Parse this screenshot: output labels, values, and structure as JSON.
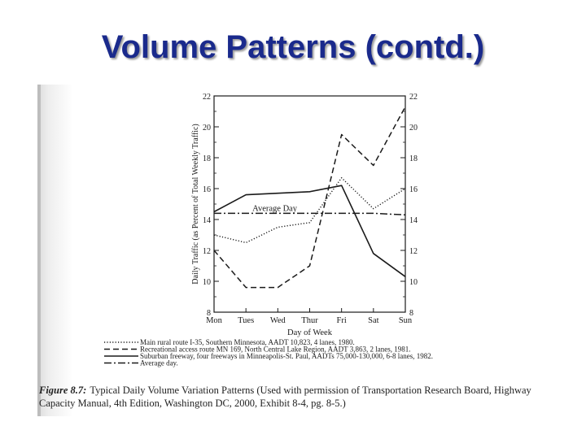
{
  "slide": {
    "title": "Volume Patterns (contd.)"
  },
  "caption": {
    "figure_label": "Figure 8.7:",
    "text": "Typical Daily Volume Variation Patterns (Used with permission of Transportation Research Board, Highway Capacity Manual, 4th Edition, Washington DC, 2000, Exhibit 8-4, pg. 8-5.)"
  },
  "chart_data": {
    "type": "line",
    "title": "",
    "xlabel": "Day of Week",
    "ylabel": "Daily Traffic (as Percent of Total Weekly Traffic)",
    "categories": [
      "Mon",
      "Tues",
      "Wed",
      "Thur",
      "Fri",
      "Sat",
      "Sun"
    ],
    "ylim": [
      8,
      22
    ],
    "yticks_left": [
      "8",
      "10",
      "12",
      "14",
      "16",
      "18",
      "20",
      "22"
    ],
    "yticks_right": [
      "8",
      "10",
      "12",
      "14",
      "16",
      "18",
      "20",
      "22"
    ],
    "grid": false,
    "legend_placement": "below",
    "series": [
      {
        "name": "Main rural route I-35, Southern Minnesota, AADT 10,823, 4 lanes, 1980.",
        "style": "dotted",
        "values": [
          13.0,
          12.5,
          13.5,
          13.8,
          16.7,
          14.7,
          16.0
        ]
      },
      {
        "name": "Recreational access route MN 169, North Central Lake Region, AADT 3,863, 2 lanes, 1981.",
        "style": "dashed",
        "values": [
          12.0,
          9.6,
          9.6,
          11.0,
          19.5,
          17.5,
          21.3
        ]
      },
      {
        "name": "Suburban freeway, four freeways in Minneapolis-St. Paul, AADTs 75,000-130,000, 6-8 lanes, 1982.",
        "style": "solid",
        "values": [
          14.5,
          15.6,
          15.7,
          15.8,
          16.2,
          11.8,
          10.3
        ]
      },
      {
        "name": "Average day.",
        "style": "dash-dot",
        "values": [
          14.4,
          14.4,
          14.4,
          14.4,
          14.4,
          14.4,
          14.3
        ]
      }
    ],
    "annotations": [
      {
        "text": "Average Day",
        "series": "Average day."
      }
    ]
  }
}
